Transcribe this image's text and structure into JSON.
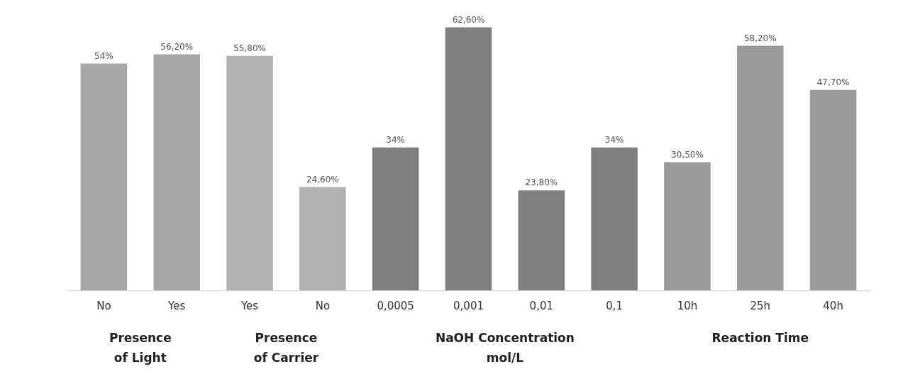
{
  "chart_data": {
    "type": "bar",
    "categories": [
      "No",
      "Yes",
      "Yes",
      "No",
      "0,0005",
      "0,001",
      "0,01",
      "0,1",
      "10h",
      "25h",
      "40h"
    ],
    "values": [
      54,
      56.2,
      55.8,
      24.6,
      34,
      62.6,
      23.8,
      34,
      30.5,
      58.2,
      47.7
    ],
    "colors": [
      "#a6a6a6",
      "#a6a6a6",
      "#b0b0b0",
      "#b0b0b0",
      "#7f7f7f",
      "#7f7f7f",
      "#7f7f7f",
      "#7f7f7f",
      "#9a9a9a",
      "#9a9a9a",
      "#9a9a9a"
    ],
    "value_labels": [
      "54%",
      "56,20%",
      "55,80%",
      "24,60%",
      "34%",
      "62,60%",
      "23,80%",
      "34%",
      "30,50%",
      "58,20%",
      "47,70%"
    ],
    "annotations": [
      "Presence\nof Light",
      "Presence\nof Carrier",
      "NaOH Concentration\nmol/L",
      "Reaction Time"
    ],
    "grid": false,
    "legend": false
  }
}
